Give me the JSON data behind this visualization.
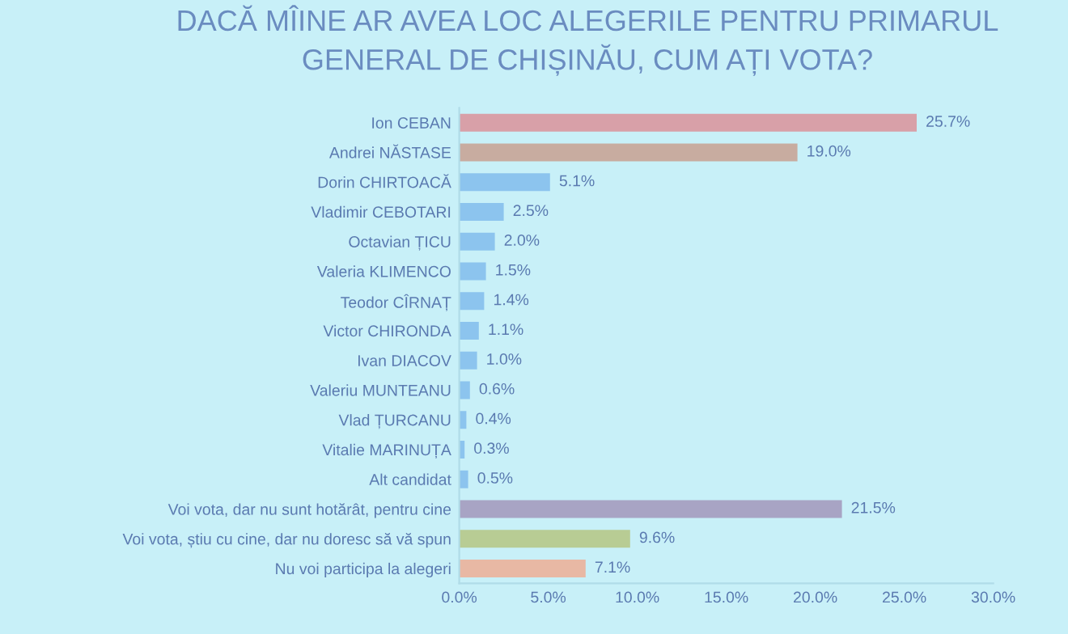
{
  "chart_data": {
    "type": "bar",
    "orientation": "horizontal",
    "title": "DACĂ MÎINE AR AVEA LOC ALEGERILE PENTRU PRIMARUL\nGENERAL DE CHIȘINĂU, CUM AȚI VOTA?",
    "categories": [
      "Ion CEBAN",
      "Andrei NĂSTASE",
      "Dorin CHIRTOACĂ",
      "Vladimir CEBOTARI",
      "Octavian ȚICU",
      "Valeria KLIMENCO",
      "Teodor CÎRNAȚ",
      "Victor CHIRONDA",
      "Ivan DIACOV",
      "Valeriu MUNTEANU",
      "Vlad ȚURCANU",
      "Vitalie MARINUȚA",
      "Alt candidat",
      "Voi vota, dar nu sunt hotărât, pentru cine",
      "Voi vota, știu cu cine, dar nu doresc să vă spun",
      "Nu voi participa la alegeri"
    ],
    "values": [
      25.7,
      19.0,
      5.1,
      2.5,
      2.0,
      1.5,
      1.4,
      1.1,
      1.0,
      0.6,
      0.4,
      0.3,
      0.5,
      21.5,
      9.6,
      7.1
    ],
    "value_labels": [
      "25.7%",
      "19.0%",
      "5.1%",
      "2.5%",
      "2.0%",
      "1.5%",
      "1.4%",
      "1.1%",
      "1.0%",
      "0.6%",
      "0.4%",
      "0.3%",
      "0.5%",
      "21.5%",
      "9.6%",
      "7.1%"
    ],
    "colors": [
      "#d8a0a8",
      "#c8aca0",
      "#8cc4ee",
      "#8cc4ee",
      "#8cc4ee",
      "#8cc4ee",
      "#8cc4ee",
      "#8cc4ee",
      "#8cc4ee",
      "#8cc4ee",
      "#8cc4ee",
      "#8cc4ee",
      "#8cc4ee",
      "#a8a4c4",
      "#b8cc94",
      "#e8b8a4"
    ],
    "xlim": [
      0,
      30
    ],
    "xticks": [
      {
        "value": 0,
        "label": "0.0%"
      },
      {
        "value": 5,
        "label": "5.0%"
      },
      {
        "value": 10,
        "label": "10.0%"
      },
      {
        "value": 15,
        "label": "15.0%"
      },
      {
        "value": 20,
        "label": "20.0%"
      },
      {
        "value": 25,
        "label": "25.0%"
      },
      {
        "value": 30,
        "label": "30.0%"
      }
    ],
    "grid": false,
    "legend": false
  }
}
